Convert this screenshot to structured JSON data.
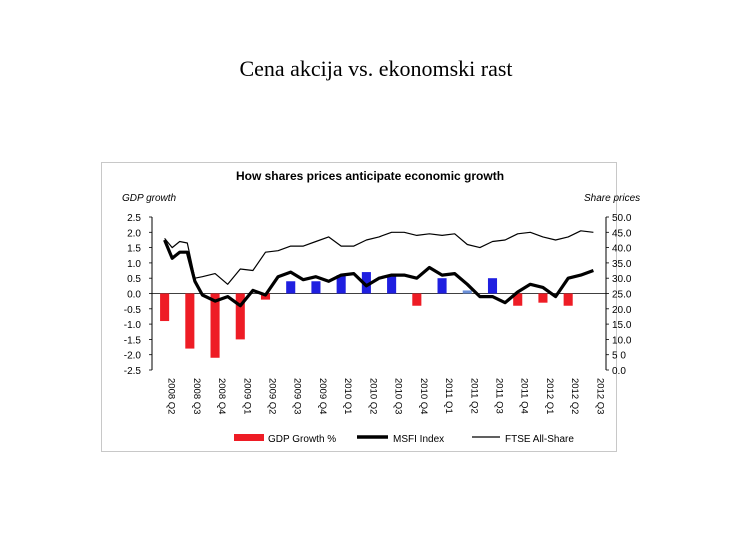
{
  "slide": {
    "title": "Cena akcija vs. ekonomski rast"
  },
  "colors": {
    "gdp": "#ee1c25",
    "gdp_blue": "#1f1fe0",
    "gdp_light": "#6a8fd8",
    "msfi": "#000000",
    "ftse": "#000000"
  },
  "chart_data": {
    "type": "bar+line",
    "title": "How shares prices anticipate economic growth",
    "ylabel_left": "GDP growth",
    "ylabel_right": "Share prices",
    "ylim_left": [
      -2.5,
      2.5
    ],
    "ylim_right": [
      0.0,
      50.0
    ],
    "yticks_left": [
      "2.5",
      "2.0",
      "1.5",
      "1.0",
      "0.5",
      "0.0",
      "-0.5",
      "-1.0",
      "-1.5",
      "-2.0",
      "-2.5"
    ],
    "yticks_right": [
      "50.0",
      "45.0",
      "40.0",
      "35.0",
      "30.0",
      "25.0",
      "20.0",
      "15.0",
      "10.0",
      "5 0",
      "0.0"
    ],
    "categories": [
      "2008 Q2",
      "2008 Q3",
      "2008 Q4",
      "2009 Q1",
      "2009 Q2",
      "2009 Q3",
      "2009 Q4",
      "2010 Q1",
      "2010 Q2",
      "2010 Q3",
      "2010 Q4",
      "2011 Q1",
      "2011 Q2",
      "2011 Q3",
      "2011 Q4",
      "2012 Q1",
      "2012 Q2",
      "2012 Q3"
    ],
    "gdp_growth": [
      -0.9,
      -1.8,
      -2.1,
      -1.5,
      -0.2,
      0.4,
      0.4,
      0.6,
      0.7,
      0.6,
      -0.4,
      0.5,
      0.1,
      0.5,
      -0.4,
      -0.3,
      -0.4,
      null
    ],
    "gdp_colors": [
      "red",
      "red",
      "red",
      "red",
      "red",
      "blue",
      "blue",
      "blue",
      "blue",
      "blue",
      "red",
      "blue",
      "lightblue",
      "blue",
      "red",
      "red",
      "red",
      "red"
    ],
    "msfi_x": [
      0,
      0.3,
      0.6,
      0.9,
      1.2,
      1.5,
      2,
      2.5,
      3,
      3.5,
      4,
      4.5,
      5,
      5.5,
      6,
      6.5,
      7,
      7.5,
      8,
      8.5,
      9,
      9.5,
      10,
      10.5,
      11,
      11.5,
      12,
      12.5,
      13,
      13.5,
      14,
      14.5,
      15,
      15.5,
      16,
      16.5,
      17
    ],
    "msfi": [
      42.5,
      36.5,
      38.5,
      38.5,
      29,
      24.5,
      22.5,
      24,
      21,
      26,
      24.5,
      30.5,
      32,
      29.5,
      30.5,
      29,
      31,
      31.5,
      27.5,
      30,
      31,
      31,
      30,
      33.5,
      31,
      31.5,
      28,
      24,
      24,
      22,
      25.5,
      28,
      27,
      24,
      30,
      31,
      32.5
    ],
    "ftse_x": [
      0,
      0.3,
      0.6,
      0.9,
      1.2,
      1.5,
      2,
      2.5,
      3,
      3.5,
      4,
      4.5,
      5,
      5.5,
      6,
      6.5,
      7,
      7.5,
      8,
      8.5,
      9,
      9.5,
      10,
      10.5,
      11,
      11.5,
      12,
      12.5,
      13,
      13.5,
      14,
      14.5,
      15,
      15.5,
      16,
      16.5,
      17
    ],
    "ftse": [
      43,
      40,
      42,
      41.5,
      30,
      30.5,
      31.5,
      28,
      33,
      32.5,
      38.5,
      39,
      40.5,
      40.5,
      42,
      43.5,
      40.5,
      40.5,
      42.5,
      43.5,
      45,
      45,
      44,
      44.5,
      44,
      44.5,
      41,
      40,
      42,
      42.5,
      44.5,
      45,
      43.5,
      42.5,
      43.5,
      45.5,
      45
    ],
    "legend": [
      {
        "label": "GDP Growth %",
        "style": "bar"
      },
      {
        "label": "MSFI Index",
        "style": "thick-line"
      },
      {
        "label": "FTSE All-Share",
        "style": "thin-line"
      }
    ]
  }
}
